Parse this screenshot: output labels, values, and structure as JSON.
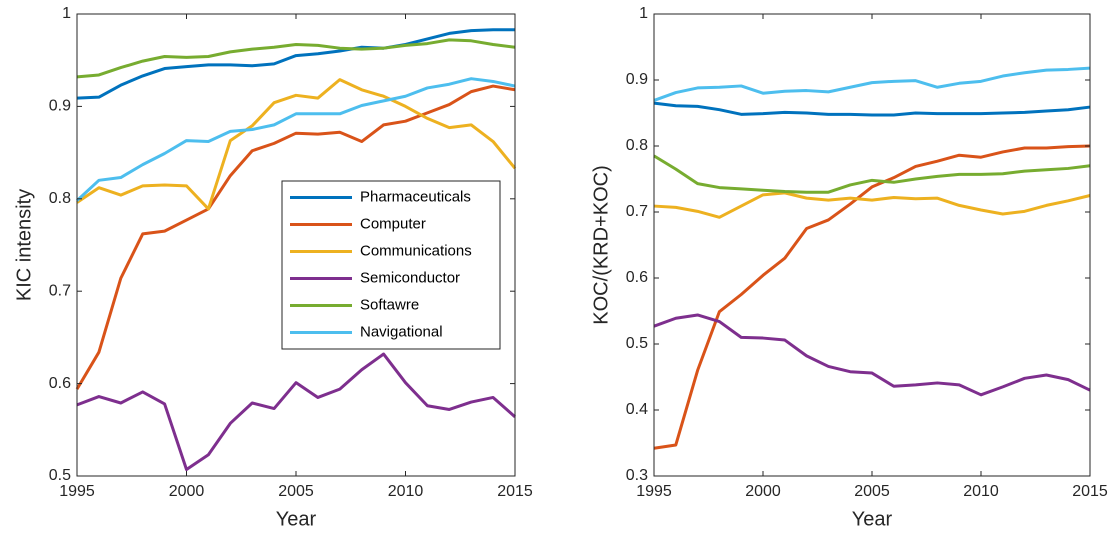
{
  "chart_data": [
    {
      "type": "line",
      "xlabel": "Year",
      "ylabel": "KIC intensity",
      "x": [
        1995,
        1996,
        1997,
        1998,
        1999,
        2000,
        2001,
        2002,
        2003,
        2004,
        2005,
        2006,
        2007,
        2008,
        2009,
        2010,
        2011,
        2012,
        2013,
        2014,
        2015
      ],
      "xlim": [
        1995,
        2015
      ],
      "xticks": [
        1995,
        2000,
        2005,
        2010,
        2015
      ],
      "ylim": [
        0.5,
        1
      ],
      "yticks": [
        0.5,
        0.6,
        0.7,
        0.8,
        0.9,
        1
      ],
      "legend": "east",
      "series": [
        {
          "name": "Pharmaceuticals",
          "color": "#0072BD",
          "values": [
            0.909,
            0.91,
            0.923,
            0.933,
            0.941,
            0.943,
            0.945,
            0.945,
            0.944,
            0.946,
            0.955,
            0.957,
            0.96,
            0.964,
            0.963,
            0.967,
            0.973,
            0.979,
            0.982,
            0.983,
            0.983
          ]
        },
        {
          "name": "Computer",
          "color": "#D95319",
          "values": [
            0.594,
            0.634,
            0.714,
            0.762,
            0.765,
            0.777,
            0.789,
            0.825,
            0.852,
            0.86,
            0.871,
            0.87,
            0.872,
            0.862,
            0.88,
            0.884,
            0.893,
            0.902,
            0.916,
            0.922,
            0.918
          ]
        },
        {
          "name": "Communications",
          "color": "#EDB120",
          "values": [
            0.796,
            0.812,
            0.804,
            0.814,
            0.815,
            0.814,
            0.789,
            0.863,
            0.879,
            0.904,
            0.912,
            0.909,
            0.929,
            0.918,
            0.911,
            0.9,
            0.887,
            0.877,
            0.88,
            0.862,
            0.833
          ]
        },
        {
          "name": "Semiconductor",
          "color": "#7E2F8E",
          "values": [
            0.577,
            0.586,
            0.579,
            0.591,
            0.578,
            0.507,
            0.523,
            0.557,
            0.579,
            0.573,
            0.601,
            0.585,
            0.594,
            0.615,
            0.632,
            0.601,
            0.576,
            0.572,
            0.58,
            0.585,
            0.564
          ]
        },
        {
          "name": "Softawre",
          "color": "#77AC30",
          "values": [
            0.932,
            0.934,
            0.942,
            0.949,
            0.954,
            0.953,
            0.954,
            0.959,
            0.962,
            0.964,
            0.967,
            0.966,
            0.963,
            0.962,
            0.963,
            0.966,
            0.968,
            0.972,
            0.971,
            0.967,
            0.964
          ]
        },
        {
          "name": "Navigational",
          "color": "#4DBEEE",
          "values": [
            0.798,
            0.82,
            0.823,
            0.837,
            0.849,
            0.863,
            0.862,
            0.873,
            0.875,
            0.88,
            0.892,
            0.892,
            0.892,
            0.901,
            0.906,
            0.911,
            0.92,
            0.924,
            0.93,
            0.927,
            0.922
          ]
        }
      ]
    },
    {
      "type": "line",
      "xlabel": "Year",
      "ylabel": "KOC/(KRD+KOC)",
      "x": [
        1995,
        1996,
        1997,
        1998,
        1999,
        2000,
        2001,
        2002,
        2003,
        2004,
        2005,
        2006,
        2007,
        2008,
        2009,
        2010,
        2011,
        2012,
        2013,
        2014,
        2015
      ],
      "xlim": [
        1995,
        2015
      ],
      "xticks": [
        1995,
        2000,
        2005,
        2010,
        2015
      ],
      "ylim": [
        0.3,
        1
      ],
      "yticks": [
        0.3,
        0.4,
        0.5,
        0.6,
        0.7,
        0.8,
        0.9,
        1
      ],
      "series": [
        {
          "color": "#0072BD",
          "values": [
            0.865,
            0.861,
            0.86,
            0.855,
            0.848,
            0.849,
            0.851,
            0.85,
            0.848,
            0.848,
            0.847,
            0.847,
            0.85,
            0.849,
            0.849,
            0.849,
            0.85,
            0.851,
            0.853,
            0.855,
            0.859
          ]
        },
        {
          "color": "#D95319",
          "values": [
            0.342,
            0.347,
            0.46,
            0.549,
            0.575,
            0.604,
            0.63,
            0.675,
            0.688,
            0.712,
            0.738,
            0.752,
            0.769,
            0.777,
            0.786,
            0.783,
            0.791,
            0.797,
            0.797,
            0.799,
            0.8
          ]
        },
        {
          "color": "#EDB120",
          "values": [
            0.709,
            0.707,
            0.701,
            0.692,
            0.709,
            0.726,
            0.729,
            0.721,
            0.718,
            0.721,
            0.718,
            0.722,
            0.72,
            0.721,
            0.71,
            0.703,
            0.697,
            0.701,
            0.71,
            0.717,
            0.725
          ]
        },
        {
          "color": "#7E2F8E",
          "values": [
            0.527,
            0.539,
            0.544,
            0.534,
            0.51,
            0.509,
            0.506,
            0.482,
            0.466,
            0.458,
            0.456,
            0.436,
            0.438,
            0.441,
            0.438,
            0.423,
            0.435,
            0.448,
            0.453,
            0.446,
            0.43
          ]
        },
        {
          "color": "#77AC30",
          "values": [
            0.785,
            0.765,
            0.743,
            0.737,
            0.735,
            0.733,
            0.731,
            0.73,
            0.73,
            0.741,
            0.748,
            0.745,
            0.75,
            0.754,
            0.757,
            0.757,
            0.758,
            0.762,
            0.764,
            0.766,
            0.77
          ]
        },
        {
          "color": "#4DBEEE",
          "values": [
            0.869,
            0.881,
            0.888,
            0.889,
            0.891,
            0.88,
            0.883,
            0.884,
            0.882,
            0.889,
            0.896,
            0.898,
            0.899,
            0.889,
            0.895,
            0.898,
            0.906,
            0.911,
            0.915,
            0.916,
            0.918
          ]
        }
      ]
    }
  ]
}
